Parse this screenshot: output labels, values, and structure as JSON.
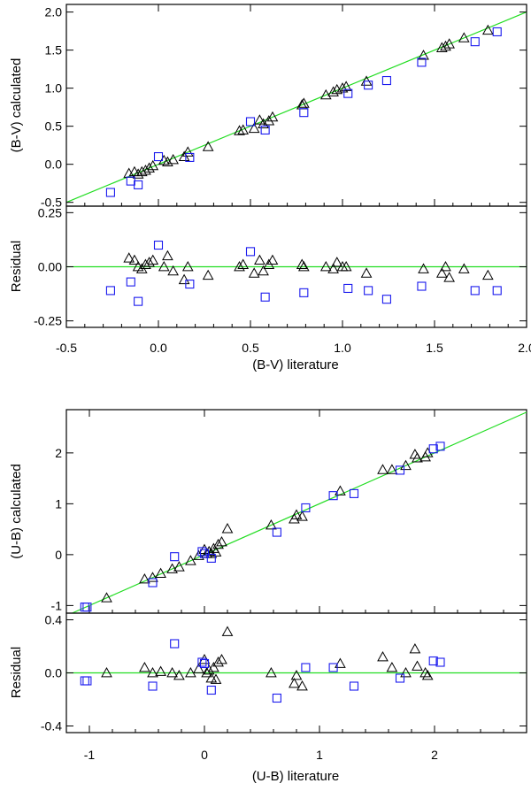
{
  "chart_data": [
    {
      "type": "scatter",
      "title": "",
      "xlabel": "(B-V) literature",
      "xlim": [
        -0.5,
        2.0
      ],
      "x_ticks": [
        -0.5,
        0.0,
        0.5,
        1.0,
        1.5,
        2.0
      ],
      "x_tick_labels": [
        "-0.5",
        "0.0",
        "0.5",
        "1.0",
        "1.5",
        "2.0"
      ],
      "top": {
        "ylabel": "(B-V) calculated",
        "ylim": [
          -0.55,
          2.1
        ],
        "y_ticks": [
          -0.5,
          0.0,
          0.5,
          1.0,
          1.5,
          2.0
        ],
        "y_tick_labels": [
          "-0.5",
          "0.0",
          "0.5",
          "1.0",
          "1.5",
          "2.0"
        ],
        "line": {
          "x": [
            -0.5,
            2.0
          ],
          "y": [
            -0.5,
            2.0
          ],
          "color": "#22dd22"
        },
        "series": [
          {
            "name": "triangles",
            "marker": "triangle",
            "color": "#000000",
            "x": [
              -0.16,
              -0.13,
              -0.11,
              -0.09,
              -0.07,
              -0.05,
              -0.03,
              0.03,
              0.05,
              0.08,
              0.14,
              0.16,
              0.27,
              0.44,
              0.46,
              0.52,
              0.55,
              0.57,
              0.6,
              0.62,
              0.78,
              0.79,
              0.91,
              0.95,
              0.97,
              1.0,
              1.02,
              1.13,
              1.44,
              1.54,
              1.56,
              1.58,
              1.66,
              1.79
            ],
            "y": [
              -0.12,
              -0.1,
              -0.13,
              -0.1,
              -0.08,
              -0.05,
              -0.02,
              0.05,
              0.03,
              0.06,
              0.1,
              0.16,
              0.23,
              0.44,
              0.45,
              0.47,
              0.58,
              0.53,
              0.57,
              0.62,
              0.78,
              0.8,
              0.91,
              0.95,
              0.98,
              1.0,
              1.02,
              1.09,
              1.43,
              1.53,
              1.55,
              1.58,
              1.66,
              1.76
            ]
          },
          {
            "name": "squares",
            "marker": "square",
            "color": "#1a1aee",
            "x": [
              -0.26,
              -0.15,
              -0.11,
              0.0,
              0.17,
              0.5,
              0.58,
              0.79,
              1.03,
              1.14,
              1.24,
              1.43,
              1.72,
              1.84
            ],
            "y": [
              -0.37,
              -0.22,
              -0.27,
              0.1,
              0.09,
              0.56,
              0.45,
              0.68,
              0.93,
              1.04,
              1.1,
              1.34,
              1.61,
              1.74
            ]
          }
        ]
      },
      "residual": {
        "ylabel": "Residual",
        "ylim": [
          -0.28,
          0.28
        ],
        "y_ticks": [
          -0.25,
          0.0,
          0.25
        ],
        "y_tick_labels": [
          "-0.25",
          "0.00",
          "0.25"
        ],
        "line": {
          "y": 0.0,
          "color": "#22dd22"
        },
        "series": [
          {
            "name": "triangles",
            "marker": "triangle",
            "color": "#000000",
            "x": [
              -0.16,
              -0.13,
              -0.11,
              -0.09,
              -0.07,
              -0.05,
              -0.03,
              0.03,
              0.05,
              0.08,
              0.14,
              0.16,
              0.27,
              0.44,
              0.46,
              0.52,
              0.55,
              0.57,
              0.6,
              0.62,
              0.78,
              0.79,
              0.91,
              0.95,
              0.97,
              1.0,
              1.02,
              1.13,
              1.44,
              1.54,
              1.56,
              1.58,
              1.66,
              1.79
            ],
            "y": [
              0.04,
              0.03,
              0.0,
              -0.01,
              0.01,
              0.02,
              0.03,
              0.0,
              0.05,
              -0.02,
              -0.06,
              0.0,
              -0.04,
              0.0,
              0.01,
              -0.03,
              0.03,
              -0.02,
              0.01,
              0.03,
              0.01,
              0.0,
              0.0,
              -0.01,
              0.02,
              0.0,
              0.0,
              -0.03,
              -0.01,
              -0.03,
              0.0,
              -0.05,
              -0.01,
              -0.04
            ]
          },
          {
            "name": "squares",
            "marker": "square",
            "color": "#1a1aee",
            "x": [
              -0.26,
              -0.15,
              -0.11,
              0.0,
              0.17,
              0.5,
              0.58,
              0.79,
              1.03,
              1.14,
              1.24,
              1.43,
              1.72,
              1.84
            ],
            "y": [
              -0.11,
              -0.07,
              -0.16,
              0.1,
              -0.08,
              0.07,
              -0.14,
              -0.12,
              -0.1,
              -0.11,
              -0.15,
              -0.09,
              -0.11,
              -0.11
            ]
          }
        ]
      }
    },
    {
      "type": "scatter",
      "title": "",
      "xlabel": "(U-B) literature",
      "xlim": [
        -1.2,
        2.8
      ],
      "x_ticks": [
        -1,
        0,
        1,
        2
      ],
      "x_tick_labels": [
        "-1",
        "0",
        "1",
        "2"
      ],
      "top": {
        "ylabel": "(U-B) calculated",
        "ylim": [
          -1.15,
          2.85
        ],
        "y_ticks": [
          -1,
          0,
          1,
          2
        ],
        "y_tick_labels": [
          "-1",
          "0",
          "1",
          "2"
        ],
        "line": {
          "x": [
            -1.2,
            2.8
          ],
          "y": [
            -1.2,
            2.8
          ],
          "color": "#22dd22"
        },
        "series": [
          {
            "name": "triangles",
            "marker": "triangle",
            "color": "#000000",
            "x": [
              -0.85,
              -0.52,
              -0.45,
              -0.38,
              -0.28,
              -0.22,
              -0.12,
              -0.05,
              0.0,
              0.02,
              0.04,
              0.06,
              0.08,
              0.1,
              0.12,
              0.15,
              0.2,
              0.58,
              0.78,
              0.8,
              0.85,
              1.18,
              1.55,
              1.63,
              1.75,
              1.83,
              1.85,
              1.92,
              1.94
            ],
            "y": [
              -0.85,
              -0.48,
              -0.45,
              -0.37,
              -0.28,
              -0.24,
              -0.12,
              -0.02,
              0.1,
              0.02,
              0.06,
              0.02,
              0.12,
              0.05,
              0.2,
              0.25,
              0.51,
              0.58,
              0.7,
              0.78,
              0.75,
              1.25,
              1.67,
              1.67,
              1.75,
              1.97,
              1.9,
              1.92,
              2.0
            ],
            "yr": [
              0.0,
              0.04,
              0.0,
              0.01,
              0.0,
              -0.02,
              0.0,
              0.03,
              0.1,
              0.0,
              0.02,
              -0.04,
              0.04,
              -0.05,
              0.08,
              0.1,
              0.31,
              0.0,
              -0.08,
              -0.02,
              -0.1,
              0.07,
              0.12,
              0.04,
              0.0,
              0.18,
              0.05,
              0.0,
              -0.02
            ]
          },
          {
            "name": "squares",
            "marker": "square",
            "color": "#1a1aee",
            "x": [
              -1.04,
              -1.02,
              -0.45,
              -0.26,
              -0.02,
              0.0,
              0.06,
              0.63,
              0.88,
              1.12,
              1.3,
              1.7,
              1.99,
              2.05
            ],
            "y": [
              -1.03,
              -1.03,
              -0.55,
              -0.04,
              0.06,
              0.02,
              -0.07,
              0.44,
              0.92,
              1.16,
              1.2,
              1.66,
              2.08,
              2.13
            ],
            "yr": [
              -0.06,
              -0.06,
              -0.1,
              0.22,
              0.08,
              0.07,
              -0.13,
              -0.19,
              0.04,
              0.04,
              -0.1,
              -0.04,
              0.09,
              0.08
            ]
          }
        ]
      },
      "residual": {
        "ylabel": "Residual",
        "ylim": [
          -0.45,
          0.45
        ],
        "y_ticks": [
          -0.4,
          0.0,
          0.4
        ],
        "y_tick_labels": [
          "-0.4",
          "0.0",
          "0.4"
        ],
        "line": {
          "y": 0.0,
          "color": "#22dd22"
        }
      }
    }
  ]
}
